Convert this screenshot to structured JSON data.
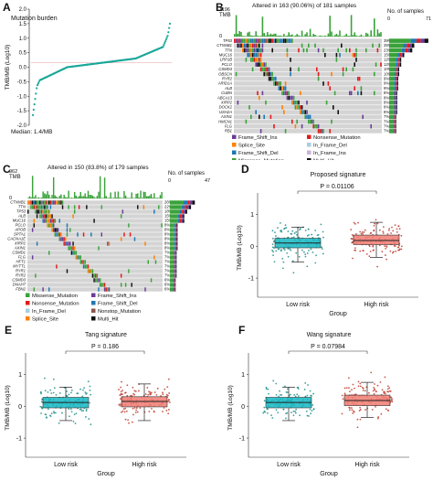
{
  "colors": {
    "teal": "#1aa79a",
    "missense": "#3aa23a",
    "frame_shift_del": "#1f77b4",
    "frame_shift_ins": "#6a3d9a",
    "nonsense": "#e31a1c",
    "splice": "#ff7f00",
    "in_frame_del": "#a6cee3",
    "in_frame_ins": "#cab2d6",
    "multi_hit": "#111111",
    "nonstop": "#8c564b",
    "low_box": "#14b7c3",
    "high_box": "#f07b72",
    "grey": "#d4d4d4"
  },
  "panelA": {
    "letter": "A",
    "title": "Mutation burden",
    "ylabel": "TMB/MB (Log10)",
    "median": "Median: 1.4/MB",
    "yticks": [
      "2.0",
      "1.5",
      "1.0",
      "0.5",
      "0.0",
      "-0.5",
      "-1.0",
      "-1.5",
      "-2.0"
    ]
  },
  "panelB": {
    "letter": "B",
    "header": "Altered in 163 (90.06%) of 181 samples",
    "tmb_label": "TMB",
    "tmb_max": "1196",
    "tmb_min": "0",
    "samples_label": "No. of samples",
    "samples_min": "0",
    "samples_max": "71",
    "genes": [
      "TP53",
      "CTNNB1",
      "TTN",
      "MUC16",
      "LRP1B",
      "PCLO",
      "CSMD3",
      "OBSCN",
      "RYR2",
      "ARID1A",
      "ALB",
      "CUBN",
      "ABCA13",
      "XIRP2",
      "DOCK2",
      "USH2A",
      "AXIN1",
      "HMCN1",
      "FLG",
      "RB1"
    ],
    "pcts": [
      "39%",
      "25%",
      "23%",
      "15%",
      "12%",
      "12%",
      "10%",
      "10%",
      "9%",
      "9%",
      "9%",
      "8%",
      "8%",
      "8%",
      "8%",
      "8%",
      "7%",
      "7%",
      "7%",
      "7%"
    ],
    "legend": [
      "Frame_Shift_Ins",
      "Nonsense_Mutation",
      "Splice_Site",
      "In_Frame_Del",
      "Frame_Shift_Del",
      "In_Frame_Ins",
      "Missense_Mutation",
      "Multi_Hit"
    ]
  },
  "panelC": {
    "letter": "C",
    "header": "Altered in 150 (83.8%) of 179 samples",
    "tmb_label": "TMB",
    "tmb_max": "962",
    "tmb_min": "0",
    "samples_label": "No. of samples",
    "samples_min": "0",
    "samples_max": "47",
    "genes": [
      "CTNNB1",
      "TTN",
      "TP53",
      "ALB",
      "MUC16",
      "PCLO",
      "APOB",
      "SPTA1",
      "CACNA1E",
      "XIRP2",
      "AXIN1",
      "CSMD1",
      "FLG",
      "HFT1",
      "MYTTL",
      "RYR1",
      "RYR2",
      "CSMD3",
      "DNAH7",
      "FBN2"
    ],
    "pcts": [
      "26%",
      "22%",
      "18%",
      "15%",
      "15%",
      "8%",
      "8%",
      "8%",
      "8%",
      "8%",
      "8%",
      "7%",
      "7%",
      "7%",
      "7%",
      "7%",
      "7%",
      "6%",
      "6%",
      "6%"
    ],
    "legend": [
      "Missense_Mutation",
      "Frame_Shift_Ins",
      "Nonsense_Mutation",
      "Frame_Shift_Del",
      "In_Frame_Del",
      "Nonstop_Mutation",
      "Splice_Site",
      "Multi_Hit"
    ]
  },
  "chart_data": [
    {
      "type": "scatter",
      "title": "Mutation burden",
      "ylabel": "TMB/MB (Log10)",
      "ylim": [
        -2.0,
        2.0
      ],
      "median_label": "Median: 1.4/MB",
      "n_samples": 181,
      "quantiles_log10": {
        "min": -1.65,
        "q05": -0.45,
        "q25": 0.0,
        "median": 0.15,
        "q75": 0.3,
        "q95": 0.7,
        "max": 1.5
      }
    },
    {
      "type": "box",
      "title": "Proposed signature",
      "pvalue": "P = 0.01106",
      "xlabel": "Group",
      "ylabel": "TMB/MB (Log10)",
      "categories": [
        "Low risk",
        "High risk"
      ],
      "yticks": [
        1,
        0,
        -1
      ],
      "ylim": [
        -1.6,
        1.5
      ],
      "boxes": [
        {
          "name": "Low risk",
          "q1": -0.05,
          "median": 0.1,
          "q3": 0.25,
          "whisker_low": -0.5,
          "whisker_high": 0.6
        },
        {
          "name": "High risk",
          "q1": 0.05,
          "median": 0.18,
          "q3": 0.35,
          "whisker_low": -0.35,
          "whisker_high": 0.75
        }
      ]
    },
    {
      "type": "box",
      "title": "Tang signature",
      "pvalue": "P = 0.186",
      "xlabel": "Group",
      "ylabel": "TMB/MB (Log10)",
      "categories": [
        "Low risk",
        "High risk"
      ],
      "yticks": [
        1,
        0,
        -1
      ],
      "ylim": [
        -1.6,
        1.5
      ],
      "boxes": [
        {
          "name": "Low risk",
          "q1": -0.05,
          "median": 0.12,
          "q3": 0.28,
          "whisker_low": -0.45,
          "whisker_high": 0.6
        },
        {
          "name": "High risk",
          "q1": -0.02,
          "median": 0.15,
          "q3": 0.3,
          "whisker_low": -0.45,
          "whisker_high": 0.7
        }
      ]
    },
    {
      "type": "box",
      "title": "Wang signature",
      "pvalue": "P = 0.07984",
      "xlabel": "Group",
      "ylabel": "TMB/MB (Log10)",
      "categories": [
        "Low risk",
        "High risk"
      ],
      "yticks": [
        1,
        0,
        -1
      ],
      "ylim": [
        -1.6,
        1.5
      ],
      "boxes": [
        {
          "name": "Low risk",
          "q1": -0.05,
          "median": 0.12,
          "q3": 0.28,
          "whisker_low": -0.45,
          "whisker_high": 0.6
        },
        {
          "name": "High risk",
          "q1": 0.02,
          "median": 0.18,
          "q3": 0.35,
          "whisker_low": -0.35,
          "whisker_high": 0.75
        }
      ]
    }
  ]
}
